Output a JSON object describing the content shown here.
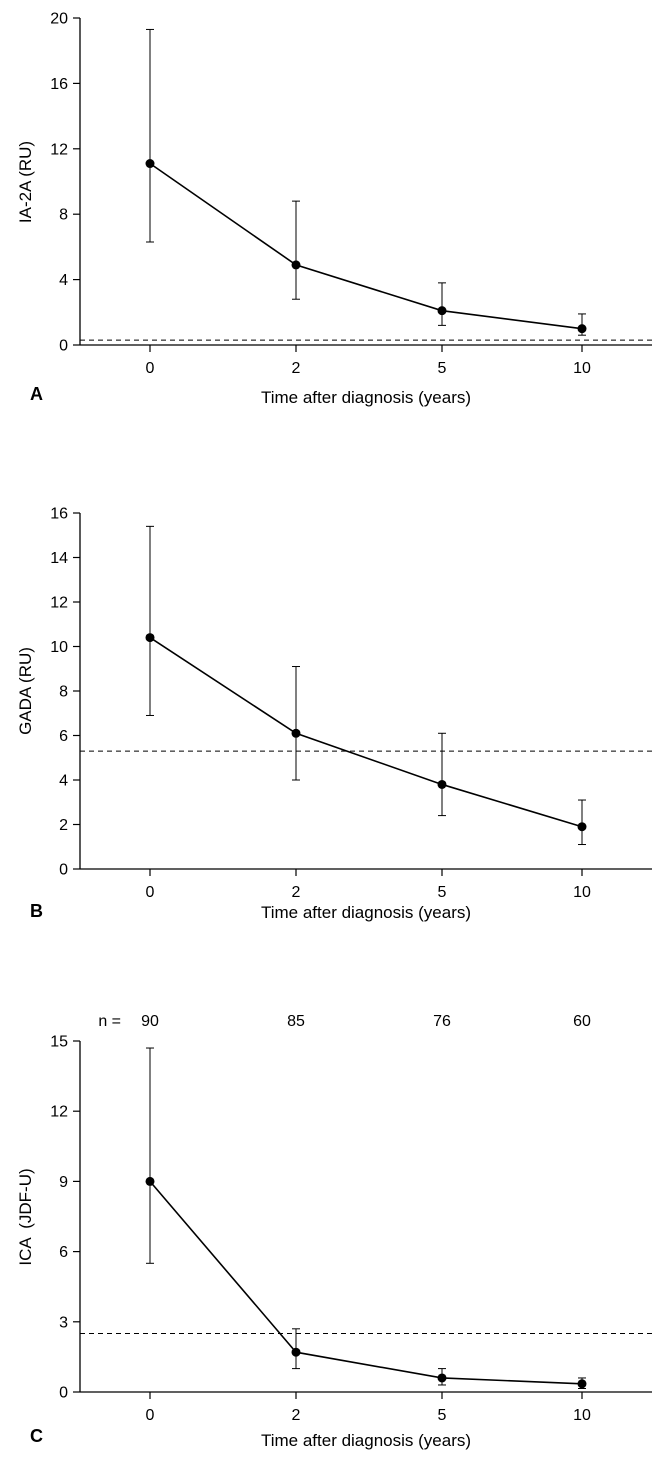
{
  "chart_data": [
    {
      "type": "line",
      "panel_label": "A",
      "xlabel": "Time after diagnosis (years)",
      "ylabel": "IA-2A (RU)",
      "categories": [
        "0",
        "2",
        "5",
        "10"
      ],
      "ylim": [
        0,
        20
      ],
      "yticks": [
        0,
        4,
        8,
        12,
        16,
        20
      ],
      "series": [
        {
          "values": [
            11.1,
            4.9,
            2.1,
            1.0
          ],
          "error_low": [
            6.3,
            2.8,
            1.2,
            0.6
          ],
          "error_high": [
            19.3,
            8.8,
            3.8,
            1.9
          ]
        }
      ],
      "reference_line": 0.3,
      "n_labels": [],
      "grid": false
    },
    {
      "type": "line",
      "panel_label": "B",
      "xlabel": "Time after diagnosis (years)",
      "ylabel": "GADA (RU)",
      "categories": [
        "0",
        "2",
        "5",
        "10"
      ],
      "ylim": [
        0,
        16
      ],
      "yticks": [
        0,
        2,
        4,
        6,
        8,
        10,
        12,
        14,
        16
      ],
      "series": [
        {
          "values": [
            10.4,
            6.1,
            3.8,
            1.9
          ],
          "error_low": [
            6.9,
            4.0,
            2.4,
            1.1
          ],
          "error_high": [
            15.4,
            9.1,
            6.1,
            3.1
          ]
        }
      ],
      "reference_line": 5.3,
      "n_labels": [],
      "grid": false
    },
    {
      "type": "line",
      "panel_label": "C",
      "xlabel": "Time after diagnosis (years)",
      "ylabel": "ICA  (JDF-U)",
      "categories": [
        "0",
        "2",
        "5",
        "10"
      ],
      "ylim": [
        0,
        15
      ],
      "yticks": [
        0,
        3,
        6,
        9,
        12,
        15
      ],
      "series": [
        {
          "values": [
            9.0,
            1.7,
            0.6,
            0.35
          ],
          "error_low": [
            5.5,
            1.0,
            0.3,
            0.15
          ],
          "error_high": [
            14.7,
            2.7,
            1.0,
            0.6
          ]
        }
      ],
      "reference_line": 2.5,
      "n_prefix": "n =",
      "n_labels": [
        "90",
        "85",
        "76",
        "60"
      ],
      "grid": false
    }
  ]
}
